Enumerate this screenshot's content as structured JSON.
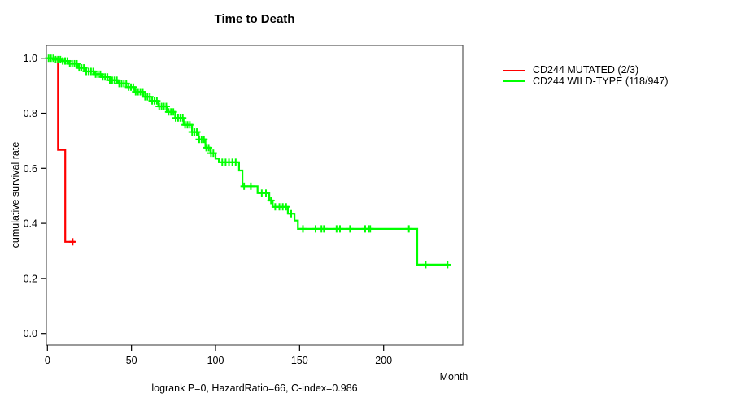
{
  "title": "Time to Death",
  "axes": {
    "xlabel": "Month",
    "ylabel": "cumulative survival rate"
  },
  "caption": "logrank P=0, HazardRatio=66, C-index=0.986",
  "legend": {
    "items": [
      {
        "label": "CD244 MUTATED (2/3)",
        "color": "#ff0000"
      },
      {
        "label": "CD244 WILD-TYPE (118/947)",
        "color": "#00ff00"
      }
    ]
  },
  "chart_data": {
    "type": "line",
    "subtype": "kaplan-meier-step",
    "title": "Time to Death",
    "xlabel": "Month",
    "ylabel": "cumulative survival rate",
    "xlim": [
      0,
      247
    ],
    "ylim": [
      0,
      1.04
    ],
    "x_ticks": {
      "values": [
        0,
        50,
        100,
        150,
        200
      ],
      "labels": [
        "0",
        "50",
        "100",
        "150",
        "200"
      ]
    },
    "y_ticks": {
      "values": [
        0.0,
        0.2,
        0.4,
        0.6,
        0.8,
        1.0
      ],
      "labels": [
        "0.0",
        "0.2",
        "0.4",
        "0.6",
        "0.8",
        "1.0"
      ]
    },
    "grid": false,
    "legend_position": "outside-right",
    "caption": "logrank P=0, HazardRatio=66, C-index=0.986",
    "series": [
      {
        "name": "CD244 MUTATED (2/3)",
        "color": "#ff0000",
        "steps": [
          [
            0,
            1.0
          ],
          [
            6.3,
            0.667
          ],
          [
            10.6,
            0.333
          ]
        ],
        "end_month": 16.4,
        "censor_months": [
          15
        ]
      },
      {
        "name": "CD244 WILD-TYPE (118/947)",
        "color": "#00ff00",
        "steps": [
          [
            0,
            1.0
          ],
          [
            4,
            0.995
          ],
          [
            8,
            0.99
          ],
          [
            13,
            0.98
          ],
          [
            18,
            0.965
          ],
          [
            23,
            0.952
          ],
          [
            28,
            0.942
          ],
          [
            32,
            0.932
          ],
          [
            37,
            0.92
          ],
          [
            42,
            0.908
          ],
          [
            47,
            0.895
          ],
          [
            52,
            0.878
          ],
          [
            57,
            0.86
          ],
          [
            61,
            0.845
          ],
          [
            66,
            0.825
          ],
          [
            71,
            0.805
          ],
          [
            76,
            0.783
          ],
          [
            81,
            0.758
          ],
          [
            86,
            0.732
          ],
          [
            90,
            0.705
          ],
          [
            94,
            0.675
          ],
          [
            97,
            0.655
          ],
          [
            100,
            0.635
          ],
          [
            102,
            0.622
          ],
          [
            114,
            0.592
          ],
          [
            116,
            0.535
          ],
          [
            125,
            0.51
          ],
          [
            132,
            0.483
          ],
          [
            134,
            0.46
          ],
          [
            143,
            0.435
          ],
          [
            147,
            0.41
          ],
          [
            149,
            0.38
          ],
          [
            220,
            0.25
          ]
        ],
        "end_month": 238.5,
        "censor_months": [
          0.7,
          2.1,
          3.5,
          4.9,
          6.3,
          7.7,
          9.1,
          10.5,
          11.9,
          13.3,
          14.7,
          16.1,
          17.5,
          18.9,
          20.3,
          21.7,
          23.1,
          24.5,
          25.9,
          27.3,
          28.7,
          30.1,
          31.5,
          32.9,
          34.3,
          35.7,
          37.1,
          38.5,
          39.9,
          41.3,
          42.7,
          44.1,
          45.5,
          46.9,
          48.3,
          49.7,
          51.1,
          52.5,
          53.9,
          55.3,
          56.7,
          58.1,
          59.5,
          60.9,
          62.3,
          63.7,
          65.1,
          66.5,
          67.9,
          69.3,
          70.7,
          72.1,
          73.5,
          74.9,
          76.3,
          77.7,
          79.1,
          80.5,
          81.9,
          83.3,
          84.7,
          86.1,
          87.5,
          88.9,
          90.3,
          91.7,
          93.1,
          94.5,
          95.9,
          97.3,
          98.7,
          104,
          106,
          108,
          110,
          112,
          117,
          121,
          127.5,
          130,
          133,
          135.5,
          138,
          140,
          142,
          145,
          152,
          159.5,
          163,
          164.5,
          172,
          174,
          180,
          189,
          191,
          192,
          215,
          225,
          238
        ]
      }
    ]
  }
}
